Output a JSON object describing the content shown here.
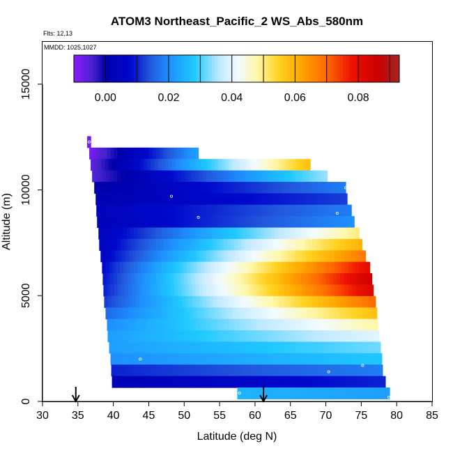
{
  "chart_data": {
    "type": "heatmap",
    "title": "ATOM3 Northeast_Pacific_2 WS_Abs_580nm",
    "annotations": [
      "Flts: 12,13",
      "MMDD: 1025,1027"
    ],
    "xlabel": "Latitude (deg N)",
    "ylabel": "Altitude (m)",
    "xlim": [
      30,
      85
    ],
    "ylim": [
      0,
      17000
    ],
    "x_ticks": [
      30,
      35,
      40,
      45,
      50,
      55,
      60,
      65,
      70,
      75,
      80,
      85
    ],
    "y_ticks": [
      0,
      5000,
      10000,
      15000
    ],
    "x_tick_labels": [
      "30",
      "35",
      "40",
      "45",
      "50",
      "55",
      "60",
      "65",
      "70",
      "75",
      "80",
      "85"
    ],
    "y_tick_labels": [
      "0",
      "5000",
      "10000",
      "15000"
    ],
    "colorbar": {
      "range": [
        -0.01,
        0.093
      ],
      "tick_values": [
        0.0,
        0.02,
        0.04,
        0.06,
        0.08
      ],
      "tick_labels": [
        "0.00",
        "0.02",
        "0.04",
        "0.06",
        "0.08"
      ],
      "divider_values": [
        0.0,
        0.01,
        0.02,
        0.03,
        0.04,
        0.05,
        0.06,
        0.07,
        0.08,
        0.09
      ],
      "color_stops": [
        {
          "v": -0.01,
          "color": "#8c1aff"
        },
        {
          "v": -0.004,
          "color": "#4422cc"
        },
        {
          "v": 0.0,
          "color": "#0000aa"
        },
        {
          "v": 0.008,
          "color": "#0008cc"
        },
        {
          "v": 0.014,
          "color": "#2257dd"
        },
        {
          "v": 0.02,
          "color": "#1e90ff"
        },
        {
          "v": 0.028,
          "color": "#1ec8ff"
        },
        {
          "v": 0.036,
          "color": "#bfe9ff"
        },
        {
          "v": 0.042,
          "color": "#f2fbff"
        },
        {
          "v": 0.048,
          "color": "#fff7a8"
        },
        {
          "v": 0.055,
          "color": "#ffd21e"
        },
        {
          "v": 0.062,
          "color": "#ffa500"
        },
        {
          "v": 0.07,
          "color": "#ff6a00"
        },
        {
          "v": 0.078,
          "color": "#ee1100"
        },
        {
          "v": 0.086,
          "color": "#cc0000"
        },
        {
          "v": 0.093,
          "color": "#a52525"
        }
      ]
    },
    "altitude_bands": [
      {
        "alt": 12270,
        "lat_min": 36.3,
        "lat_max": 36.8,
        "start": -0.008,
        "end": -0.008
      },
      {
        "alt": 11730,
        "lat_min": 36.6,
        "lat_max": 52.0,
        "start": -0.008,
        "end": 0.022
      },
      {
        "alt": 11190,
        "lat_min": 36.8,
        "lat_max": 67.8,
        "start": -0.006,
        "end": 0.058
      },
      {
        "alt": 10650,
        "lat_min": 37.0,
        "lat_max": 70.2,
        "start": -0.005,
        "end": 0.034
      },
      {
        "alt": 10110,
        "lat_min": 37.3,
        "lat_max": 72.8,
        "start": 0.0,
        "end": 0.018
      },
      {
        "alt": 9570,
        "lat_min": 37.5,
        "lat_max": 73.0,
        "start": 0.002,
        "end": 0.012
      },
      {
        "alt": 9030,
        "lat_min": 37.6,
        "lat_max": 73.6,
        "start": 0.004,
        "end": 0.018
      },
      {
        "alt": 8490,
        "lat_min": 37.7,
        "lat_max": 74.0,
        "start": 0.003,
        "end": 0.02
      },
      {
        "alt": 7950,
        "lat_min": 37.9,
        "lat_max": 74.7,
        "start": 0.004,
        "end": 0.05
      },
      {
        "alt": 7410,
        "lat_min": 38.0,
        "lat_max": 75.1,
        "start": 0.005,
        "end": 0.06
      },
      {
        "alt": 6870,
        "lat_min": 38.2,
        "lat_max": 75.6,
        "start": 0.006,
        "end": 0.068
      },
      {
        "alt": 6330,
        "lat_min": 38.4,
        "lat_max": 76.2,
        "start": 0.008,
        "end": 0.08
      },
      {
        "alt": 5790,
        "lat_min": 38.5,
        "lat_max": 76.5,
        "start": 0.009,
        "end": 0.085
      },
      {
        "alt": 5250,
        "lat_min": 38.6,
        "lat_max": 76.7,
        "start": 0.01,
        "end": 0.082
      },
      {
        "alt": 4710,
        "lat_min": 38.7,
        "lat_max": 77.0,
        "start": 0.012,
        "end": 0.07
      },
      {
        "alt": 4170,
        "lat_min": 38.9,
        "lat_max": 77.2,
        "start": 0.016,
        "end": 0.058
      },
      {
        "alt": 3630,
        "lat_min": 39.1,
        "lat_max": 77.3,
        "start": 0.02,
        "end": 0.048
      },
      {
        "alt": 3090,
        "lat_min": 39.2,
        "lat_max": 77.5,
        "start": 0.022,
        "end": 0.04
      },
      {
        "alt": 2550,
        "lat_min": 39.4,
        "lat_max": 77.7,
        "start": 0.022,
        "end": 0.032
      },
      {
        "alt": 2010,
        "lat_min": 39.6,
        "lat_max": 77.9,
        "start": 0.02,
        "end": 0.028
      },
      {
        "alt": 1470,
        "lat_min": 39.7,
        "lat_max": 78.0,
        "start": 0.01,
        "end": 0.018
      },
      {
        "alt": 930,
        "lat_min": 39.8,
        "lat_max": 78.4,
        "start": 0.003,
        "end": 0.01
      },
      {
        "alt": 390,
        "lat_min": 57.5,
        "lat_max": 79.0,
        "start": 0.025,
        "end": 0.022
      }
    ],
    "sample_points": [
      {
        "lat": 36.6,
        "alt": 12270
      },
      {
        "lat": 48.2,
        "alt": 9700
      },
      {
        "lat": 52.0,
        "alt": 8700
      },
      {
        "lat": 72.8,
        "alt": 10100
      },
      {
        "lat": 71.6,
        "alt": 8900
      },
      {
        "lat": 78.9,
        "alt": 6200
      },
      {
        "lat": 43.8,
        "alt": 2000
      },
      {
        "lat": 70.4,
        "alt": 1400
      },
      {
        "lat": 75.2,
        "alt": 1700
      },
      {
        "lat": 39.9,
        "alt": 530
      },
      {
        "lat": 44.2,
        "alt": 530
      },
      {
        "lat": 57.8,
        "alt": 390
      },
      {
        "lat": 78.9,
        "alt": 200
      }
    ],
    "arrow_markers": [
      34.7,
      61.2
    ]
  }
}
